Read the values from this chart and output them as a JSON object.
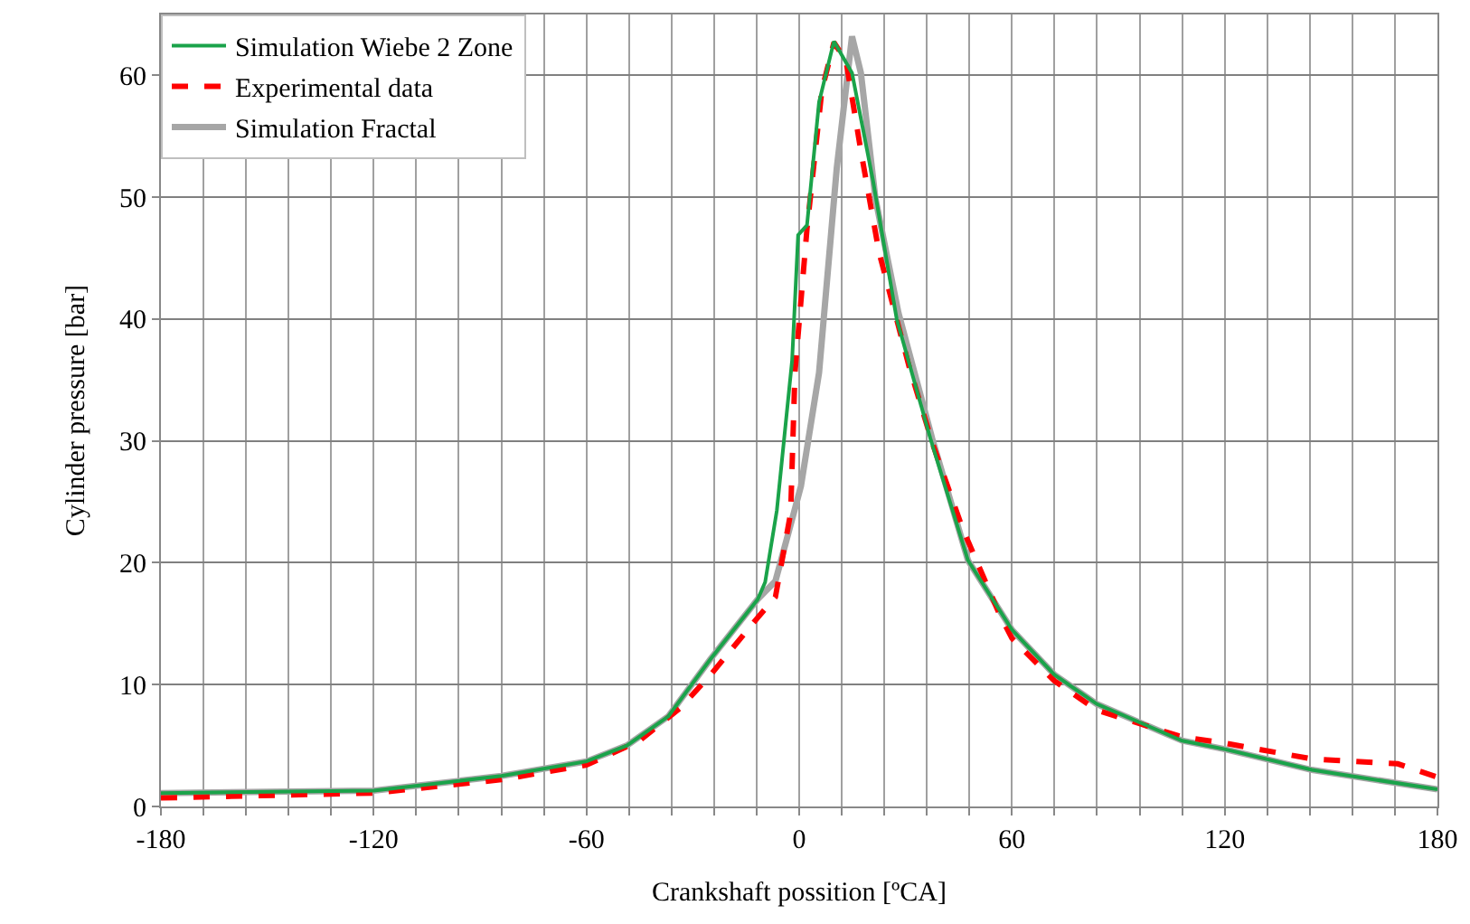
{
  "chart_data": {
    "type": "line",
    "xlabel": "Crankshaft possition [ºCA]",
    "ylabel": "Cylinder pressure [bar]",
    "xlim": [
      -180,
      180
    ],
    "ylim": [
      0,
      65
    ],
    "xticks": [
      -180,
      {
        "value": -168,
        "label": null
      },
      {
        "value": -156,
        "label": null
      },
      {
        "value": -144,
        "label": null
      },
      {
        "value": -132,
        "label": null
      },
      -120,
      {
        "value": -108,
        "label": null
      },
      {
        "value": -96,
        "label": null
      },
      {
        "value": -84,
        "label": null
      },
      {
        "value": -72,
        "label": null
      },
      -60,
      {
        "value": -48,
        "label": null
      },
      {
        "value": -36,
        "label": null
      },
      {
        "value": -24,
        "label": null
      },
      {
        "value": -12,
        "label": null
      },
      0,
      {
        "value": 12,
        "label": null
      },
      {
        "value": 24,
        "label": null
      },
      {
        "value": 36,
        "label": null
      },
      {
        "value": 48,
        "label": null
      },
      60,
      {
        "value": 72,
        "label": null
      },
      {
        "value": 84,
        "label": null
      },
      {
        "value": 96,
        "label": null
      },
      {
        "value": 108,
        "label": null
      },
      120,
      {
        "value": 132,
        "label": null
      },
      {
        "value": 144,
        "label": null
      },
      {
        "value": 156,
        "label": null
      },
      {
        "value": 168,
        "label": null
      },
      180
    ],
    "yticks": [
      0,
      10,
      20,
      30,
      40,
      50,
      60
    ],
    "grid": true,
    "legend": "top left",
    "marker": "none",
    "series": [
      {
        "name": "Simulation Wiebe 2 Zone",
        "color": "#1aa34a",
        "line_style": "solid",
        "x": [
          -180,
          -120,
          -84,
          -60,
          -48.6,
          -36.9,
          -25,
          -11.7,
          -9.6,
          -6.3,
          -2,
          -0.3,
          2.2,
          5.6,
          9.8,
          14.9,
          20.8,
          27.5,
          37,
          47.6,
          60,
          72,
          84,
          108,
          120,
          144.6,
          180
        ],
        "values": [
          1.1,
          1.3,
          2.5,
          3.7,
          5,
          7.4,
          12.1,
          17,
          18.4,
          24.3,
          36.6,
          46.9,
          47.7,
          57.8,
          62.8,
          60.2,
          51.4,
          40,
          30.2,
          20.2,
          14.5,
          10.8,
          8.4,
          5.4,
          4.7,
          3,
          1.4
        ]
      },
      {
        "name": "Experimental data",
        "color": "#ff0000",
        "line_style": "dashed",
        "x": [
          -180,
          -120,
          -84,
          -60,
          -45,
          -33.5,
          -25,
          -11.7,
          -6.7,
          -2.4,
          -1.2,
          2.2,
          6.4,
          9.8,
          13.2,
          17.4,
          22.5,
          31,
          37.7,
          46.1,
          56.3,
          60,
          72,
          84,
          108,
          120,
          144.6,
          168.8,
          180
        ],
        "values": [
          0.7,
          1.1,
          2.2,
          3.4,
          5.4,
          8.1,
          10.8,
          15.5,
          17.2,
          24.1,
          35.6,
          47.4,
          58.8,
          62.7,
          61.2,
          53.8,
          45.5,
          36.1,
          29.7,
          22.8,
          15.9,
          13.8,
          10.3,
          7.9,
          5.7,
          5.2,
          3.9,
          3.5,
          2.4
        ]
      },
      {
        "name": "Simulation Fractal",
        "color": "#a6a6a6",
        "line_style": "solid",
        "x": [
          -180,
          -120,
          -84,
          -60,
          -48.6,
          -36.9,
          -25,
          -11.7,
          -6.7,
          -1.5,
          0.5,
          5.6,
          10.6,
          14.9,
          17.4,
          21.5,
          28,
          37.5,
          47.6,
          60,
          72,
          84,
          108,
          120,
          144.6,
          180
        ],
        "values": [
          1.1,
          1.3,
          2.5,
          3.7,
          5,
          7.4,
          12.1,
          17,
          18.5,
          24.1,
          26.3,
          35.6,
          52.4,
          63.2,
          60.2,
          49.9,
          40.5,
          30.2,
          20.2,
          14.5,
          10.8,
          8.4,
          5.4,
          4.7,
          3,
          1.4
        ]
      }
    ]
  }
}
